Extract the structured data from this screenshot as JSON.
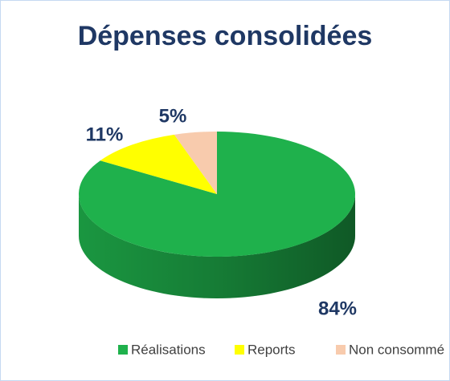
{
  "chart_data": {
    "type": "pie",
    "title": "Dépenses consolidées",
    "categories": [
      "Réalisations",
      "Reports",
      "Non consommé"
    ],
    "values": [
      84,
      11,
      5
    ],
    "value_labels": [
      "84%",
      "11%",
      "5%"
    ],
    "colors": [
      "#1fb14c",
      "#ffff00",
      "#f8cbad"
    ],
    "legend": "bottom"
  }
}
